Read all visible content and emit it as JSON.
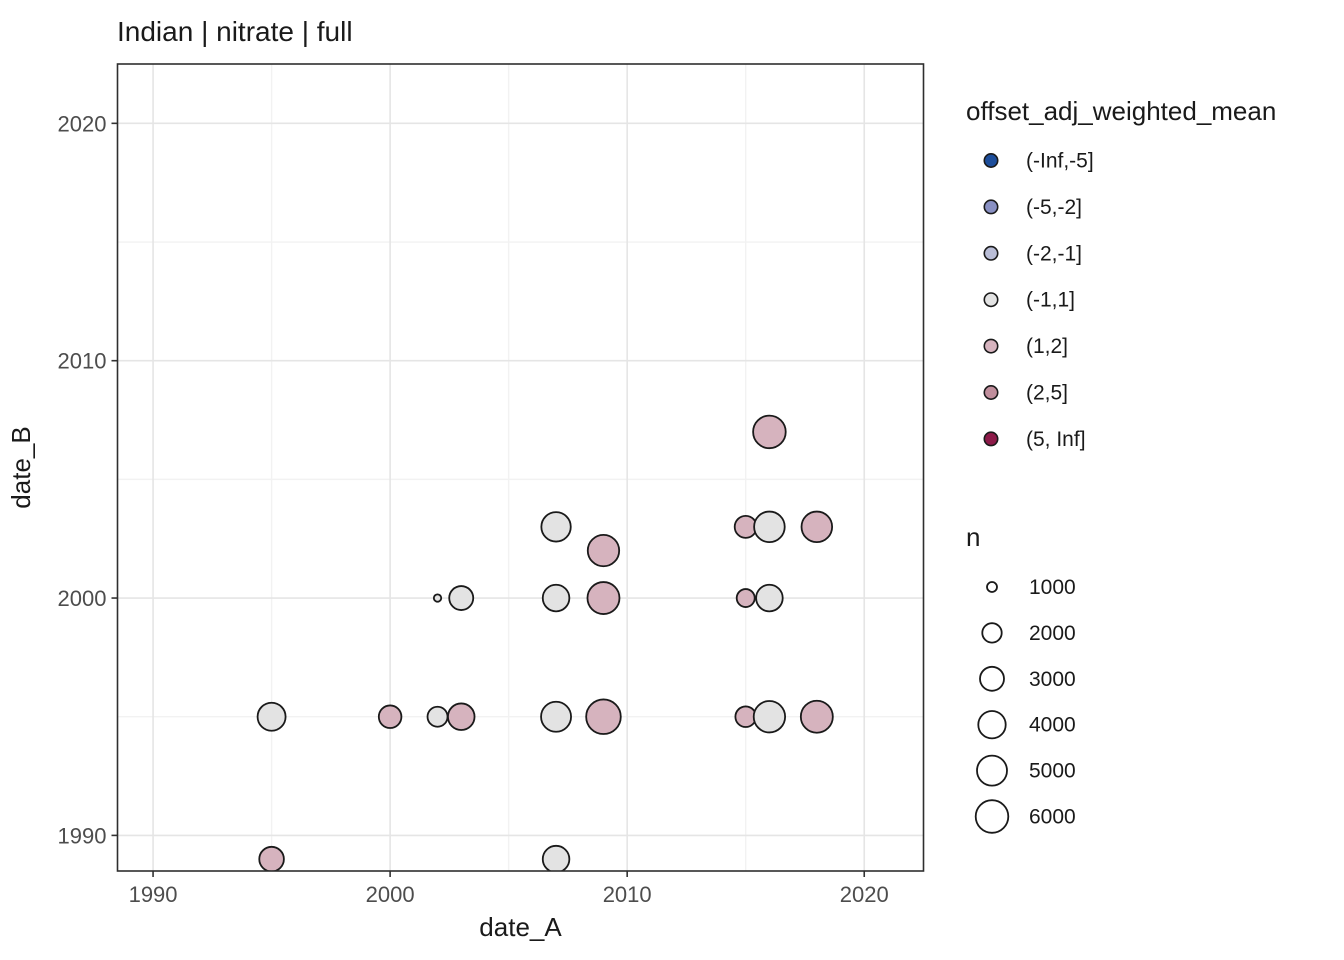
{
  "title": "Indian | nitrate | full",
  "chart_data": {
    "type": "scatter",
    "title": "Indian | nitrate | full",
    "xlabel": "date_A",
    "ylabel": "date_B",
    "x_ticks": [
      1990,
      2000,
      2010,
      2020
    ],
    "y_ticks": [
      1990,
      2000,
      2010,
      2020
    ],
    "x_minor_ticks": [
      1995,
      2005,
      2015
    ],
    "y_minor_ticks": [
      1995,
      2005,
      2015
    ],
    "x_range": [
      1988.5,
      2022.5
    ],
    "y_range": [
      1988.5,
      2022.5
    ],
    "grid": true,
    "legend_position": "right",
    "panel_border_color": "#2e2e2e",
    "major_grid_color": "#e5e5e5",
    "minor_grid_color": "#f2f2f2",
    "point_stroke_color": "#1a1a1a",
    "color_legend": {
      "title": "offset_adj_weighted_mean",
      "entries": [
        {
          "label": "(-Inf,-5]",
          "color": "#1d4e9b"
        },
        {
          "label": "(-5,-2]",
          "color": "#8990c3"
        },
        {
          "label": "(-2,-1]",
          "color": "#b9bdd6"
        },
        {
          "label": "(-1,1]",
          "color": "#e3e3e3"
        },
        {
          "label": "(1,2]",
          "color": "#d6b3be"
        },
        {
          "label": "(2,5]",
          "color": "#c08e9c"
        },
        {
          "label": "(5, Inf]",
          "color": "#8d1a49"
        }
      ]
    },
    "size_legend": {
      "title": "n",
      "entries": [
        {
          "label": "1000",
          "r": 5.0
        },
        {
          "label": "2000",
          "r": 9.7
        },
        {
          "label": "3000",
          "r": 12.0
        },
        {
          "label": "4000",
          "r": 13.7
        },
        {
          "label": "5000",
          "r": 15.0
        },
        {
          "label": "6000",
          "r": 16.3
        }
      ]
    },
    "points": [
      {
        "date_A": 1995,
        "date_B": 1995,
        "bin": "(-1,1]",
        "n": 4200,
        "r": 14.0
      },
      {
        "date_A": 1995,
        "date_B": 1989,
        "bin": "(1,2]",
        "n": 3100,
        "r": 12.3
      },
      {
        "date_A": 2000,
        "date_B": 1995,
        "bin": "(1,2]",
        "n": 2600,
        "r": 11.3
      },
      {
        "date_A": 2002,
        "date_B": 1995,
        "bin": "(-1,1]",
        "n": 2100,
        "r": 10.0
      },
      {
        "date_A": 2003,
        "date_B": 1995,
        "bin": "(1,2]",
        "n": 3800,
        "r": 13.3
      },
      {
        "date_A": 2002,
        "date_B": 2000,
        "bin": "(-1,1]",
        "n": 500,
        "r": 3.7
      },
      {
        "date_A": 2003,
        "date_B": 2000,
        "bin": "(-1,1]",
        "n": 3000,
        "r": 12.0
      },
      {
        "date_A": 2007,
        "date_B": 2003,
        "bin": "(-1,1]",
        "n": 4700,
        "r": 14.7
      },
      {
        "date_A": 2007,
        "date_B": 2000,
        "bin": "(-1,1]",
        "n": 3800,
        "r": 13.3
      },
      {
        "date_A": 2007,
        "date_B": 1995,
        "bin": "(-1,1]",
        "n": 5000,
        "r": 15.0
      },
      {
        "date_A": 2007,
        "date_B": 1989,
        "bin": "(-1,1]",
        "n": 3800,
        "r": 13.3
      },
      {
        "date_A": 2009,
        "date_B": 2002,
        "bin": "(1,2]",
        "n": 5600,
        "r": 15.7
      },
      {
        "date_A": 2009,
        "date_B": 2000,
        "bin": "(1,2]",
        "n": 5800,
        "r": 16.0
      },
      {
        "date_A": 2009,
        "date_B": 1995,
        "bin": "(1,2]",
        "n": 6900,
        "r": 17.3
      },
      {
        "date_A": 2015,
        "date_B": 2003,
        "bin": "(1,2]",
        "n": 2500,
        "r": 11.0
      },
      {
        "date_A": 2016,
        "date_B": 2003,
        "bin": "(-1,1]",
        "n": 5200,
        "r": 15.3
      },
      {
        "date_A": 2016,
        "date_B": 2007,
        "bin": "(1,2]",
        "n": 6000,
        "r": 16.3
      },
      {
        "date_A": 2015,
        "date_B": 2000,
        "bin": "(1,2]",
        "n": 1800,
        "r": 9.0
      },
      {
        "date_A": 2016,
        "date_B": 2000,
        "bin": "(-1,1]",
        "n": 3800,
        "r": 13.3
      },
      {
        "date_A": 2015,
        "date_B": 1995,
        "bin": "(1,2]",
        "n": 2200,
        "r": 10.3
      },
      {
        "date_A": 2016,
        "date_B": 1995,
        "bin": "(-1,1]",
        "n": 5600,
        "r": 15.7
      },
      {
        "date_A": 2018,
        "date_B": 2003,
        "bin": "(1,2]",
        "n": 5200,
        "r": 15.3
      },
      {
        "date_A": 2018,
        "date_B": 1995,
        "bin": "(1,2]",
        "n": 5800,
        "r": 16.0
      }
    ]
  }
}
